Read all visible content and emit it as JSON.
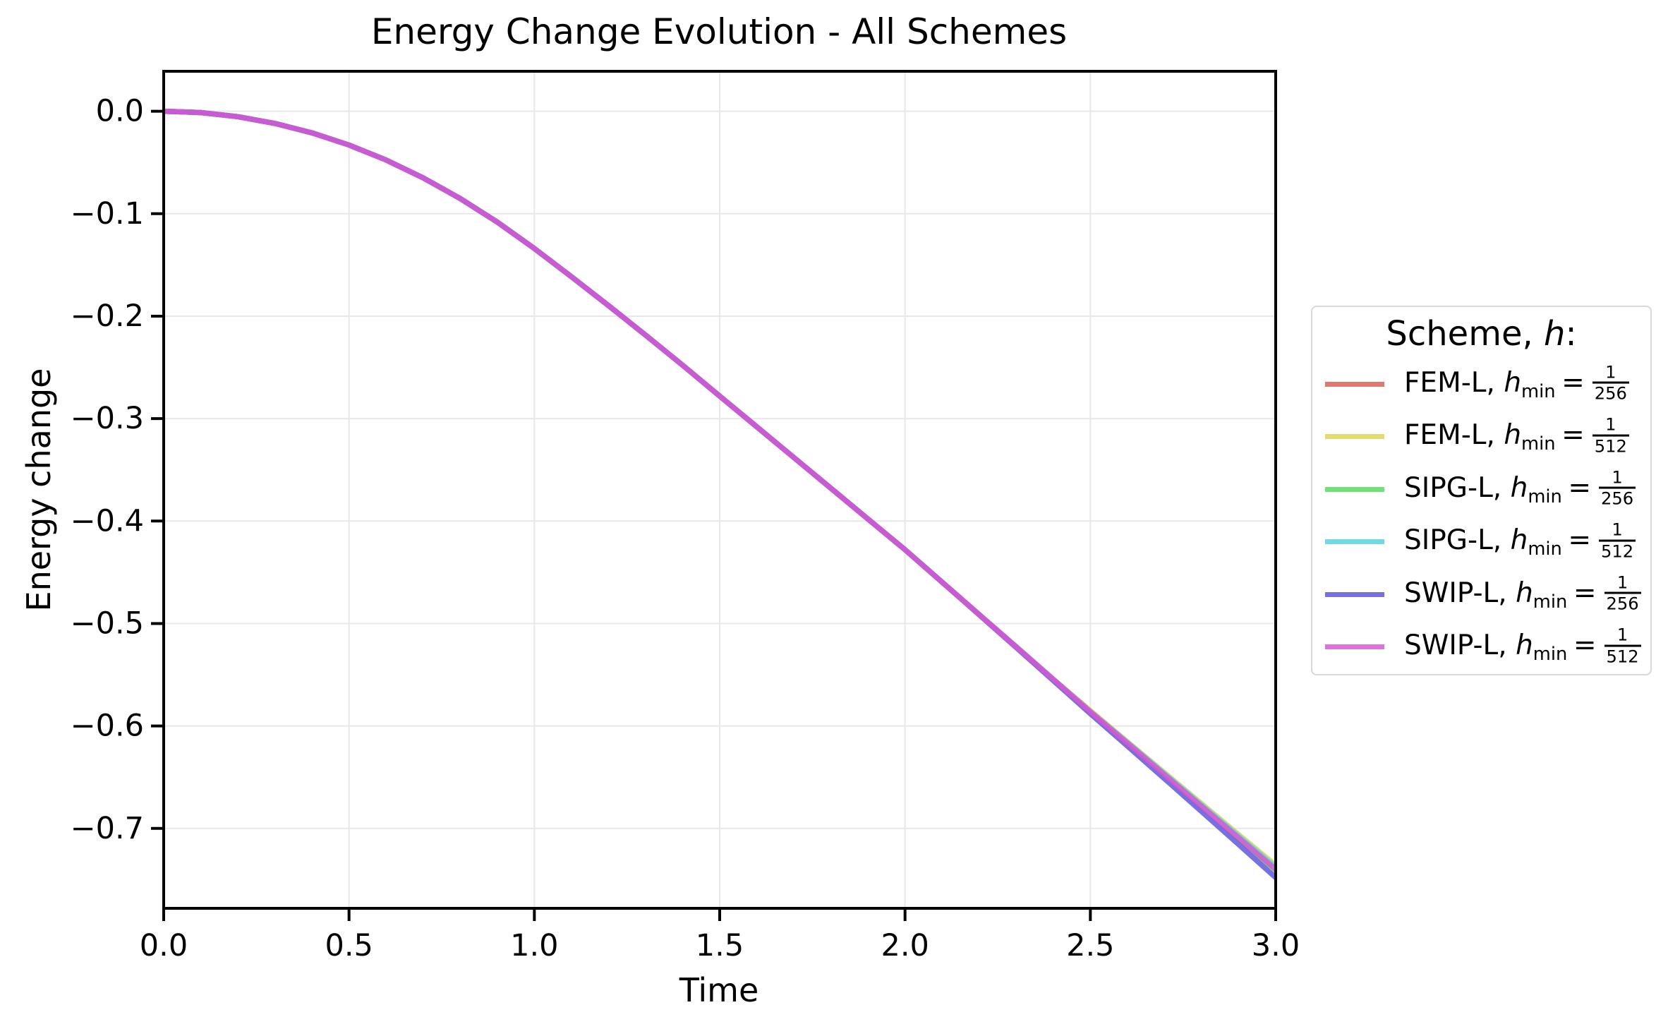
{
  "page": {
    "background": "#ffffff"
  },
  "chart_data": {
    "type": "line",
    "title": "Energy Change Evolution - All Schemes",
    "xlabel": "Time",
    "ylabel": "Energy change",
    "xlim": [
      0.0,
      3.0
    ],
    "ylim": [
      -0.778,
      0.039
    ],
    "grid": true,
    "legend_position": "right-outside",
    "x_ticks": {
      "values": [
        0.0,
        0.5,
        1.0,
        1.5,
        2.0,
        2.5,
        3.0
      ],
      "labels": [
        "0.0",
        "0.5",
        "1.0",
        "1.5",
        "2.0",
        "2.5",
        "3.0"
      ]
    },
    "y_ticks": {
      "values": [
        0.0,
        -0.1,
        -0.2,
        -0.3,
        -0.4,
        -0.5,
        -0.6,
        -0.7
      ],
      "labels": [
        "0.0",
        "−0.1",
        "−0.2",
        "−0.3",
        "−0.4",
        "−0.5",
        "−0.6",
        "−0.7"
      ]
    },
    "x": [
      0.0,
      0.1,
      0.2,
      0.3,
      0.4,
      0.5,
      0.6,
      0.7,
      0.8,
      0.9,
      1.0,
      1.1,
      1.2,
      1.3,
      1.4,
      1.5,
      1.6,
      1.7,
      1.8,
      1.9,
      2.0,
      2.1,
      2.2,
      2.3,
      2.4,
      2.5,
      2.6,
      2.7,
      2.8,
      2.9,
      3.0
    ],
    "series": [
      {
        "name": "FEM-L, h_min = 1/256",
        "color": "#db5f57",
        "values": [
          0.0,
          -0.0013,
          -0.0053,
          -0.0119,
          -0.0211,
          -0.033,
          -0.0476,
          -0.065,
          -0.0852,
          -0.1082,
          -0.134,
          -0.1615,
          -0.1897,
          -0.2185,
          -0.2479,
          -0.278,
          -0.308,
          -0.338,
          -0.368,
          -0.398,
          -0.428,
          -0.4596,
          -0.4912,
          -0.5228,
          -0.5544,
          -0.586,
          -0.6168,
          -0.6476,
          -0.6784,
          -0.7092,
          -0.74
        ]
      },
      {
        "name": "FEM-L, h_min = 1/512",
        "color": "#dbd657",
        "values": [
          0.0,
          -0.0013,
          -0.0053,
          -0.0119,
          -0.0211,
          -0.033,
          -0.0476,
          -0.065,
          -0.0852,
          -0.1082,
          -0.134,
          -0.1615,
          -0.1897,
          -0.2185,
          -0.2479,
          -0.278,
          -0.308,
          -0.338,
          -0.368,
          -0.398,
          -0.428,
          -0.4596,
          -0.4912,
          -0.5228,
          -0.5544,
          -0.585,
          -0.6154,
          -0.6456,
          -0.6758,
          -0.706,
          -0.736
        ]
      },
      {
        "name": "SIPG-L, h_min = 1/256",
        "color": "#57db5f",
        "values": [
          0.0,
          -0.0013,
          -0.0053,
          -0.0119,
          -0.0211,
          -0.033,
          -0.0476,
          -0.065,
          -0.0852,
          -0.1082,
          -0.134,
          -0.1615,
          -0.1897,
          -0.2185,
          -0.2479,
          -0.278,
          -0.308,
          -0.338,
          -0.368,
          -0.398,
          -0.428,
          -0.4596,
          -0.4912,
          -0.5228,
          -0.5544,
          -0.586,
          -0.6172,
          -0.6481,
          -0.679,
          -0.71,
          -0.741
        ]
      },
      {
        "name": "SIPG-L, h_min = 1/512",
        "color": "#57d3db",
        "values": [
          0.0,
          -0.0013,
          -0.0053,
          -0.0119,
          -0.0211,
          -0.033,
          -0.0476,
          -0.065,
          -0.0852,
          -0.1082,
          -0.134,
          -0.1615,
          -0.1897,
          -0.2185,
          -0.2479,
          -0.278,
          -0.308,
          -0.338,
          -0.368,
          -0.398,
          -0.428,
          -0.4596,
          -0.4912,
          -0.5228,
          -0.5544,
          -0.586,
          -0.6161,
          -0.6466,
          -0.6771,
          -0.7076,
          -0.738
        ]
      },
      {
        "name": "SWIP-L, h_min = 1/256",
        "color": "#5f57db",
        "values": [
          0.0,
          -0.0013,
          -0.0053,
          -0.0119,
          -0.0211,
          -0.033,
          -0.0476,
          -0.065,
          -0.0852,
          -0.1082,
          -0.134,
          -0.1615,
          -0.1897,
          -0.2185,
          -0.2479,
          -0.278,
          -0.308,
          -0.338,
          -0.368,
          -0.398,
          -0.428,
          -0.4597,
          -0.4915,
          -0.5235,
          -0.5557,
          -0.588,
          -0.6197,
          -0.6515,
          -0.6835,
          -0.7157,
          -0.748
        ]
      },
      {
        "name": "SWIP-L, h_min = 1/512",
        "color": "#db57d3",
        "values": [
          0.0,
          -0.0013,
          -0.0053,
          -0.0119,
          -0.0211,
          -0.033,
          -0.0476,
          -0.065,
          -0.0852,
          -0.1082,
          -0.134,
          -0.1615,
          -0.1897,
          -0.2185,
          -0.2479,
          -0.278,
          -0.308,
          -0.338,
          -0.368,
          -0.398,
          -0.428,
          -0.4596,
          -0.4912,
          -0.5228,
          -0.5544,
          -0.586,
          -0.6168,
          -0.6476,
          -0.6784,
          -0.7092,
          -0.74
        ]
      }
    ],
    "style": {
      "line_width": 7.5,
      "line_alpha": 0.85,
      "grid_color": "#e8e8e8",
      "spine_color": "#000000",
      "tick_color": "#000000",
      "text_color": "#000000",
      "tick_font_size": 43,
      "spine_width": 4
    }
  },
  "legend": {
    "title_prefix": "Scheme, ",
    "title_symbol": "h",
    "title_suffix": ":",
    "border_color": "#d9d9d9",
    "entries": [
      {
        "label_prefix": "FEM-L, ",
        "h_symbol": "h",
        "h_subscript": "min",
        "equals_sign": "=",
        "frac_numerator": "1",
        "frac_denominator": "256"
      },
      {
        "label_prefix": "FEM-L, ",
        "h_symbol": "h",
        "h_subscript": "min",
        "equals_sign": "=",
        "frac_numerator": "1",
        "frac_denominator": "512"
      },
      {
        "label_prefix": "SIPG-L, ",
        "h_symbol": "h",
        "h_subscript": "min",
        "equals_sign": "=",
        "frac_numerator": "1",
        "frac_denominator": "256"
      },
      {
        "label_prefix": "SIPG-L, ",
        "h_symbol": "h",
        "h_subscript": "min",
        "equals_sign": "=",
        "frac_numerator": "1",
        "frac_denominator": "512"
      },
      {
        "label_prefix": "SWIP-L, ",
        "h_symbol": "h",
        "h_subscript": "min",
        "equals_sign": "=",
        "frac_numerator": "1",
        "frac_denominator": "256"
      },
      {
        "label_prefix": "SWIP-L, ",
        "h_symbol": "h",
        "h_subscript": "min",
        "equals_sign": "=",
        "frac_numerator": "1",
        "frac_denominator": "512"
      }
    ]
  }
}
